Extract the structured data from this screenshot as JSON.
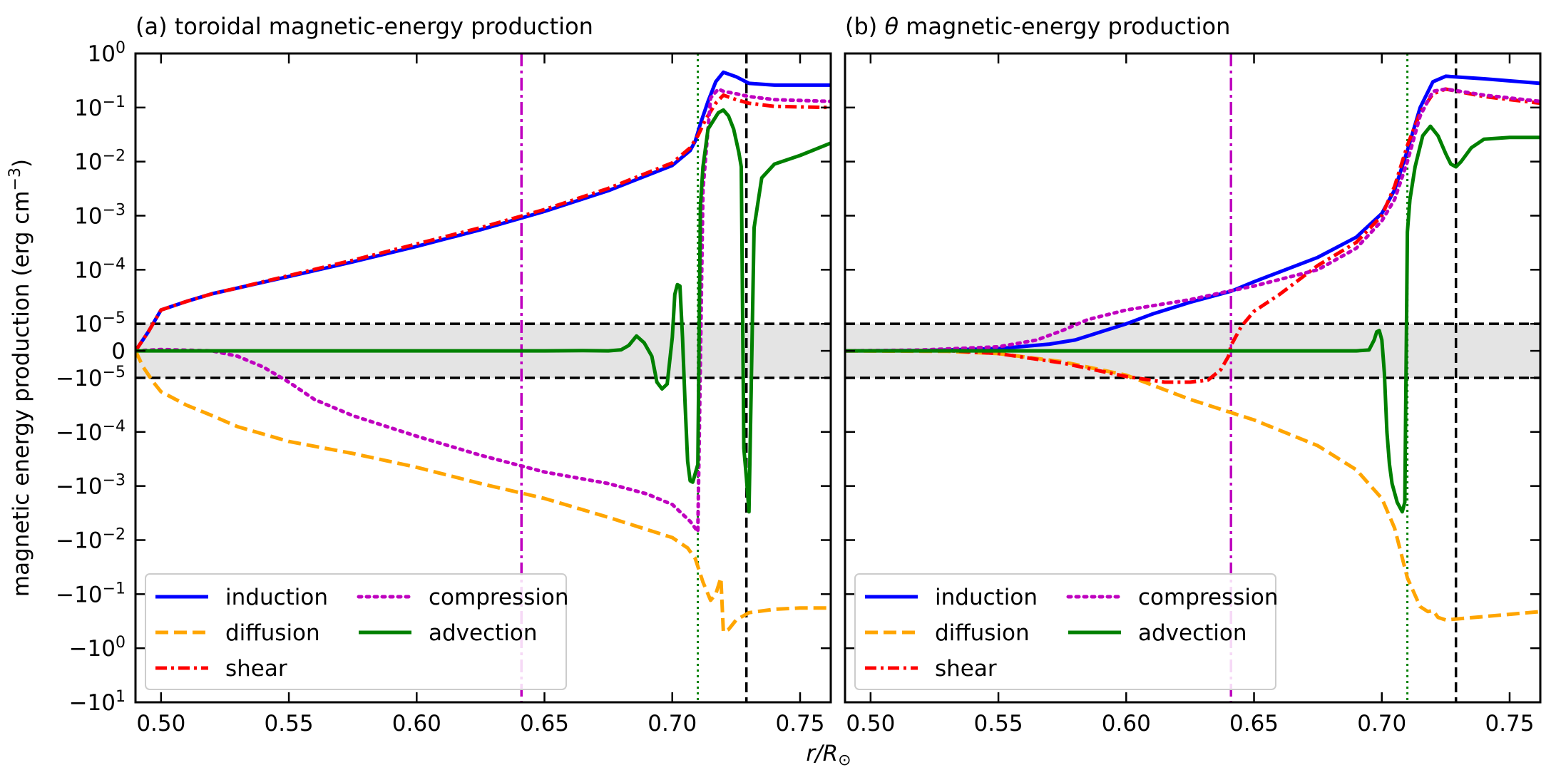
{
  "chart_data": [
    {
      "type": "line",
      "panel_letter": "(a)",
      "title": "toroidal magnetic-energy production",
      "xlabel": "r/R",
      "xlabel_sub": "⊙",
      "ylabel": "magnetic energy production (erg cm",
      "ylabel_sup": "−3",
      "ylabel_end": ")",
      "scale": "symlog",
      "xlim": [
        0.49,
        0.762
      ],
      "ylim": [
        -10,
        1
      ],
      "linthresh": 1e-05,
      "x_ticks": [
        "0.50",
        "0.55",
        "0.60",
        "0.65",
        "0.70",
        "0.75"
      ],
      "x_tick_values": [
        0.5,
        0.55,
        0.6,
        0.65,
        0.7,
        0.75
      ],
      "y_ticks": [
        {
          "value": 1,
          "base": "10",
          "exp": "0"
        },
        {
          "value": 0.1,
          "base": "10",
          "exp": "−1"
        },
        {
          "value": 0.01,
          "base": "10",
          "exp": "−2"
        },
        {
          "value": 0.001,
          "base": "10",
          "exp": "−3"
        },
        {
          "value": 0.0001,
          "base": "10",
          "exp": "−4"
        },
        {
          "value": 1e-05,
          "base": "10",
          "exp": "−5"
        },
        {
          "value": 0,
          "base": "0",
          "exp": ""
        },
        {
          "value": -1e-05,
          "base": "−10",
          "exp": "−5"
        },
        {
          "value": -0.0001,
          "base": "−10",
          "exp": "−4"
        },
        {
          "value": -0.001,
          "base": "−10",
          "exp": "−3"
        },
        {
          "value": -0.01,
          "base": "−10",
          "exp": "−2"
        },
        {
          "value": -0.1,
          "base": "−10",
          "exp": "−1"
        },
        {
          "value": -1,
          "base": "−10",
          "exp": "0"
        },
        {
          "value": -10,
          "base": "−10",
          "exp": "1"
        }
      ],
      "vlines": [
        {
          "x": 0.641,
          "color": "#bf00bf",
          "style": "dashdot"
        },
        {
          "x": 0.71,
          "color": "#008000",
          "style": "dotted"
        },
        {
          "x": 0.729,
          "color": "#000000",
          "style": "dashed"
        }
      ],
      "shaded_band": {
        "y": [
          -1e-05,
          1e-05
        ],
        "color": "#e4e4e4"
      },
      "legend": {
        "location": "lower-left",
        "columns": 2
      },
      "series": [
        {
          "name": "induction",
          "color": "#0000ff",
          "style": "solid",
          "x": [
            0.49,
            0.495,
            0.5,
            0.51,
            0.52,
            0.53,
            0.55,
            0.575,
            0.6,
            0.625,
            0.65,
            0.675,
            0.7,
            0.707,
            0.709,
            0.711,
            0.714,
            0.717,
            0.72,
            0.725,
            0.73,
            0.74,
            0.762
          ],
          "y": [
            0,
            7e-06,
            1.8e-05,
            2.6e-05,
            3.6e-05,
            4.6e-05,
            7.5e-05,
            0.00014,
            0.00027,
            0.00055,
            0.0012,
            0.0029,
            0.0085,
            0.016,
            0.024,
            0.05,
            0.13,
            0.3,
            0.45,
            0.37,
            0.28,
            0.26,
            0.26
          ]
        },
        {
          "name": "diffusion",
          "color": "#ffa500",
          "style": "dashed",
          "x": [
            0.49,
            0.493,
            0.497,
            0.5,
            0.51,
            0.52,
            0.53,
            0.55,
            0.575,
            0.6,
            0.625,
            0.65,
            0.675,
            0.7,
            0.706,
            0.709,
            0.712,
            0.715,
            0.717,
            0.719,
            0.72,
            0.722,
            0.725,
            0.73,
            0.74,
            0.75,
            0.762
          ],
          "y": [
            0,
            -6e-06,
            -1.2e-05,
            -1.8e-05,
            -3.2e-05,
            -5e-05,
            -8e-05,
            -0.00015,
            -0.00025,
            -0.00045,
            -0.0009,
            -0.0017,
            -0.0038,
            -0.009,
            -0.014,
            -0.022,
            -0.06,
            -0.13,
            -0.1,
            -0.05,
            -0.5,
            -0.45,
            -0.3,
            -0.22,
            -0.19,
            -0.18,
            -0.18
          ]
        },
        {
          "name": "shear",
          "color": "#ff0000",
          "style": "dashdot",
          "x": [
            0.49,
            0.495,
            0.5,
            0.51,
            0.52,
            0.53,
            0.55,
            0.575,
            0.6,
            0.625,
            0.65,
            0.675,
            0.7,
            0.707,
            0.71,
            0.713,
            0.717,
            0.72,
            0.725,
            0.73,
            0.74,
            0.762
          ],
          "y": [
            0,
            7e-06,
            1.8e-05,
            2.6e-05,
            3.6e-05,
            4.6e-05,
            7.8e-05,
            0.00015,
            0.0003,
            0.0006,
            0.0013,
            0.0032,
            0.0095,
            0.018,
            0.03,
            0.06,
            0.12,
            0.17,
            0.14,
            0.12,
            0.105,
            0.1
          ]
        },
        {
          "name": "compression",
          "color": "#bf00bf",
          "style": "dotted",
          "x": [
            0.49,
            0.5,
            0.52,
            0.53,
            0.54,
            0.55,
            0.56,
            0.575,
            0.6,
            0.625,
            0.65,
            0.675,
            0.69,
            0.7,
            0.707,
            0.71,
            0.712,
            0.715,
            0.718,
            0.72,
            0.725,
            0.73,
            0.74,
            0.762
          ],
          "y": [
            0,
            5e-07,
            0,
            -2e-06,
            -6e-06,
            -1.2e-05,
            -2.5e-05,
            -5e-05,
            -0.00012,
            -0.00027,
            -0.00055,
            -0.0009,
            -0.0014,
            -0.0022,
            -0.0045,
            -0.007,
            0.003,
            0.15,
            0.22,
            0.2,
            0.18,
            0.16,
            0.14,
            0.13
          ]
        },
        {
          "name": "advection",
          "color": "#008000",
          "style": "solid",
          "x": [
            0.49,
            0.55,
            0.6,
            0.65,
            0.665,
            0.675,
            0.68,
            0.683,
            0.686,
            0.689,
            0.692,
            0.694,
            0.696,
            0.698,
            0.7,
            0.701,
            0.702,
            0.703,
            0.704,
            0.705,
            0.706,
            0.707,
            0.708,
            0.71,
            0.711,
            0.712,
            0.714,
            0.718,
            0.72,
            0.722,
            0.724,
            0.726,
            0.727,
            0.728,
            0.729,
            0.73,
            0.732,
            0.735,
            0.74,
            0.75,
            0.762
          ],
          "y": [
            0,
            0,
            0,
            0,
            1e-07,
            0,
            4e-07,
            2e-06,
            5.5e-06,
            3e-06,
            -2e-06,
            -1.2e-05,
            -1.6e-05,
            -1.3e-05,
            5e-06,
            3.5e-05,
            5.3e-05,
            5e-05,
            5e-06,
            -3e-05,
            -0.00035,
            -0.0008,
            -0.00085,
            -0.0004,
            0.0015,
            0.008,
            0.04,
            0.08,
            0.09,
            0.07,
            0.04,
            0.015,
            0.008,
            -0.0002,
            -0.0007,
            -0.003,
            0.0006,
            0.005,
            0.009,
            0.013,
            0.022
          ]
        }
      ]
    },
    {
      "type": "line",
      "panel_letter": "(b)",
      "title_symbol": "θ",
      "title": "magnetic-energy production",
      "xlim": [
        0.49,
        0.762
      ],
      "ylim": [
        -10,
        1
      ],
      "scale": "symlog",
      "linthresh": 1e-05,
      "x_ticks": [
        "0.50",
        "0.55",
        "0.60",
        "0.65",
        "0.70",
        "0.75"
      ],
      "x_tick_values": [
        0.5,
        0.55,
        0.6,
        0.65,
        0.7,
        0.75
      ],
      "vlines": [
        {
          "x": 0.641,
          "color": "#bf00bf",
          "style": "dashdot"
        },
        {
          "x": 0.71,
          "color": "#008000",
          "style": "dotted"
        },
        {
          "x": 0.729,
          "color": "#000000",
          "style": "dashed"
        }
      ],
      "shaded_band": {
        "y": [
          -1e-05,
          1e-05
        ],
        "color": "#e4e4e4"
      },
      "legend": {
        "location": "lower-left",
        "columns": 2
      },
      "series": [
        {
          "name": "induction",
          "color": "#0000ff",
          "style": "solid",
          "x": [
            0.49,
            0.52,
            0.55,
            0.57,
            0.58,
            0.59,
            0.6,
            0.61,
            0.625,
            0.641,
            0.65,
            0.675,
            0.69,
            0.7,
            0.705,
            0.71,
            0.715,
            0.72,
            0.725,
            0.74,
            0.762
          ],
          "y": [
            0,
            1e-07,
            8e-07,
            2.5e-06,
            4e-06,
            7e-06,
            1e-05,
            1.5e-05,
            2.5e-05,
            4e-05,
            6e-05,
            0.00017,
            0.0004,
            0.0011,
            0.003,
            0.016,
            0.1,
            0.3,
            0.38,
            0.34,
            0.28
          ]
        },
        {
          "name": "diffusion",
          "color": "#ffa500",
          "style": "dashed",
          "x": [
            0.49,
            0.53,
            0.55,
            0.575,
            0.6,
            0.625,
            0.65,
            0.675,
            0.69,
            0.7,
            0.705,
            0.71,
            0.715,
            0.718,
            0.72,
            0.722,
            0.725,
            0.74,
            0.762
          ],
          "y": [
            0,
            -2e-07,
            -1e-06,
            -4e-06,
            -9e-06,
            -2.5e-05,
            -6e-05,
            -0.00018,
            -0.0005,
            -0.0017,
            -0.006,
            -0.05,
            -0.17,
            -0.21,
            -0.2,
            -0.27,
            -0.3,
            -0.26,
            -0.21
          ]
        },
        {
          "name": "shear",
          "color": "#ff0000",
          "style": "dashdot",
          "x": [
            0.49,
            0.53,
            0.55,
            0.575,
            0.6,
            0.615,
            0.625,
            0.632,
            0.637,
            0.64,
            0.641,
            0.645,
            0.65,
            0.66,
            0.675,
            0.69,
            0.7,
            0.705,
            0.71,
            0.715,
            0.72,
            0.725,
            0.74,
            0.762
          ],
          "y": [
            0,
            1e-07,
            -1e-06,
            -4.5e-06,
            -9.5e-06,
            -1.2e-05,
            -1.2e-05,
            -1.1e-05,
            -7e-06,
            -2e-06,
            2e-06,
            9e-06,
            1.7e-05,
            3.5e-05,
            0.00012,
            0.00032,
            0.001,
            0.0035,
            0.02,
            0.08,
            0.18,
            0.22,
            0.16,
            0.12
          ]
        },
        {
          "name": "compression",
          "color": "#bf00bf",
          "style": "dotted",
          "x": [
            0.49,
            0.52,
            0.55,
            0.565,
            0.575,
            0.585,
            0.6,
            0.625,
            0.641,
            0.65,
            0.675,
            0.69,
            0.7,
            0.705,
            0.71,
            0.715,
            0.72,
            0.725,
            0.74,
            0.762
          ],
          "y": [
            0,
            3e-07,
            1.5e-06,
            4e-06,
            7.5e-06,
            1.2e-05,
            1.8e-05,
            2.8e-05,
            4.1e-05,
            5e-05,
            0.0001,
            0.00025,
            0.0008,
            0.002,
            0.01,
            0.07,
            0.2,
            0.22,
            0.17,
            0.13
          ]
        },
        {
          "name": "advection",
          "color": "#008000",
          "style": "solid",
          "x": [
            0.49,
            0.55,
            0.6,
            0.65,
            0.69,
            0.695,
            0.697,
            0.698,
            0.699,
            0.7,
            0.701,
            0.702,
            0.703,
            0.704,
            0.706,
            0.708,
            0.709,
            0.71,
            0.711,
            0.713,
            0.716,
            0.719,
            0.722,
            0.725,
            0.727,
            0.729,
            0.731,
            0.735,
            0.74,
            0.75,
            0.762
          ],
          "y": [
            0,
            0,
            0,
            0,
            0,
            3e-07,
            4e-06,
            7e-06,
            7.5e-06,
            4e-06,
            -8e-06,
            -0.0001,
            -0.0004,
            -0.0009,
            -0.002,
            -0.003,
            -0.002,
            0.0005,
            0.002,
            0.008,
            0.03,
            0.045,
            0.03,
            0.014,
            0.009,
            0.008,
            0.01,
            0.018,
            0.026,
            0.028,
            0.028
          ]
        }
      ]
    }
  ]
}
